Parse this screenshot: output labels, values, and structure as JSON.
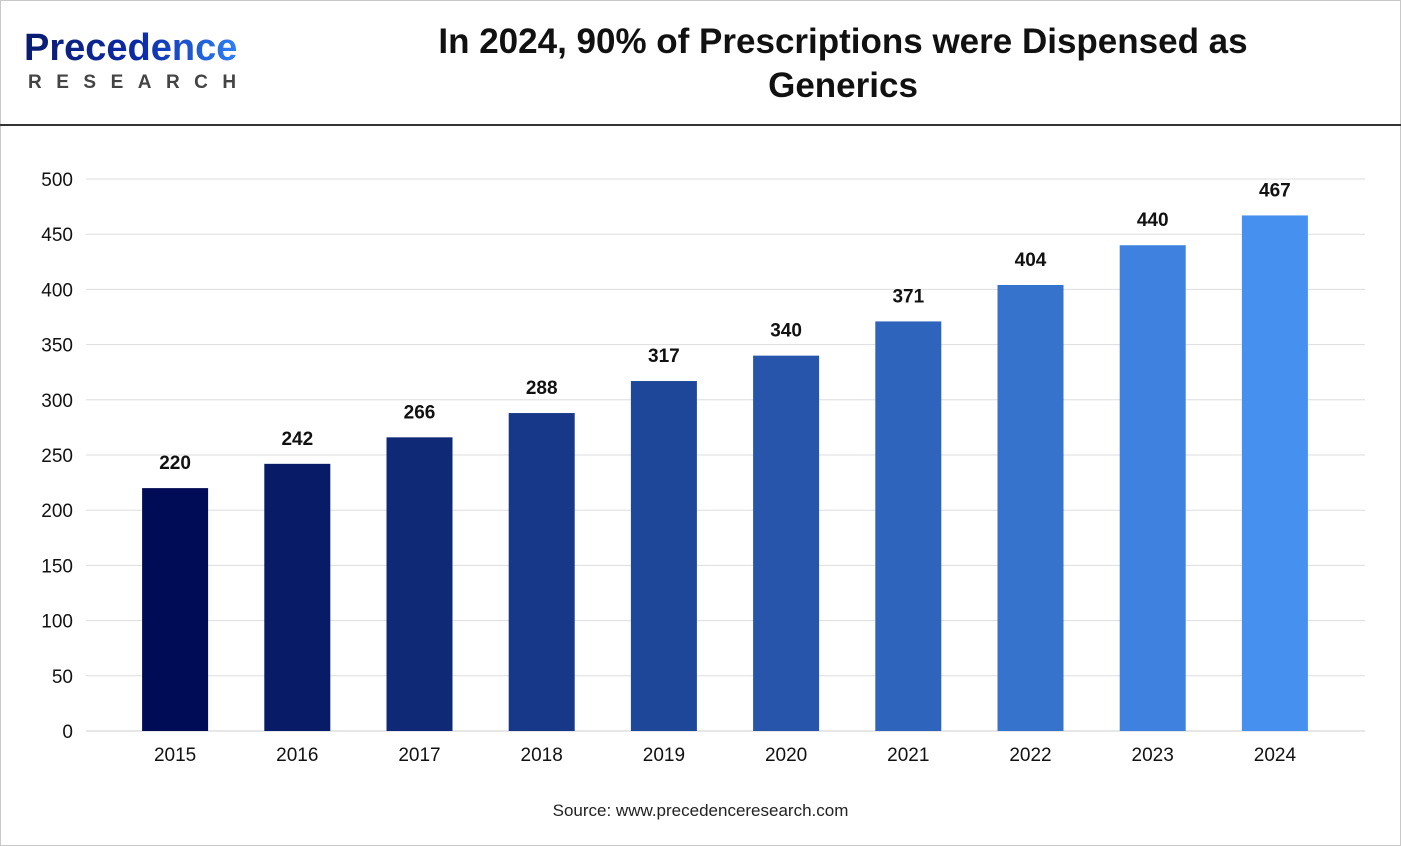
{
  "logo": {
    "name": "Precedence",
    "sub": "RESEARCH"
  },
  "colors": {
    "bar_start": "#000c55",
    "bar_end": "#4690ef",
    "grid": "#dddddd"
  },
  "chart_data": {
    "type": "bar",
    "title": "In 2024, 90% of Prescriptions were Dispensed as Generics",
    "xlabel": "",
    "ylabel": "",
    "categories": [
      "2015",
      "2016",
      "2017",
      "2018",
      "2019",
      "2020",
      "2021",
      "2022",
      "2023",
      "2024"
    ],
    "values": [
      220,
      242,
      266,
      288,
      317,
      340,
      371,
      404,
      440,
      467
    ],
    "ylim": [
      0,
      500
    ],
    "yticks": [
      0,
      50,
      100,
      150,
      200,
      250,
      300,
      350,
      400,
      450,
      500
    ],
    "grid": true,
    "legend": "none"
  },
  "source": "Source: www.precedenceresearch.com"
}
